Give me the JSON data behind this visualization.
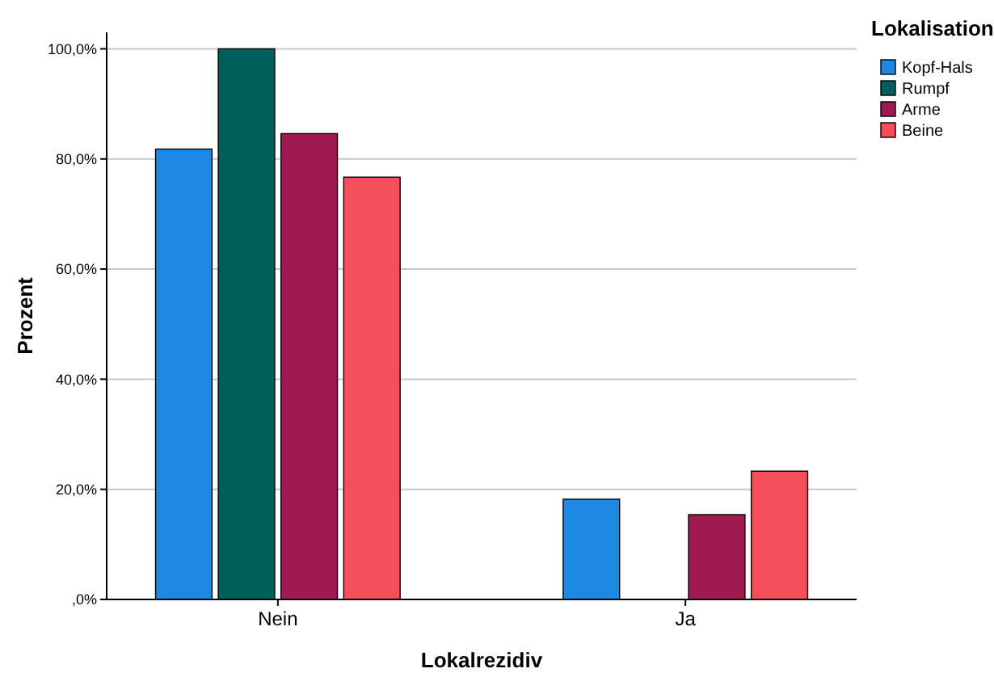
{
  "chart_data": {
    "type": "bar",
    "xlabel": "Lokalrezidiv",
    "ylabel": "Prozent",
    "legend_title": "Lokalisation",
    "categories": [
      "Nein",
      "Ja"
    ],
    "series": [
      {
        "name": "Kopf-Hals",
        "color": "#1e88e5",
        "values": [
          81.8,
          18.2
        ]
      },
      {
        "name": "Rumpf",
        "color": "#005f5a",
        "values": [
          100,
          0
        ]
      },
      {
        "name": "Arme",
        "color": "#9e1a50",
        "values": [
          84.6,
          15.4
        ]
      },
      {
        "name": "Beine",
        "color": "#f5505a",
        "values": [
          76.7,
          23.3
        ]
      }
    ],
    "ylim": [
      0,
      103
    ],
    "yticks": [
      {
        "value": 0,
        "label": ",0%"
      },
      {
        "value": 20,
        "label": "20,0%"
      },
      {
        "value": 40,
        "label": "40,0%"
      },
      {
        "value": 60,
        "label": "60,0%"
      },
      {
        "value": 80,
        "label": "80,0%"
      },
      {
        "value": 100,
        "label": "100,0%"
      }
    ],
    "grid": "y",
    "legend": "top right"
  }
}
